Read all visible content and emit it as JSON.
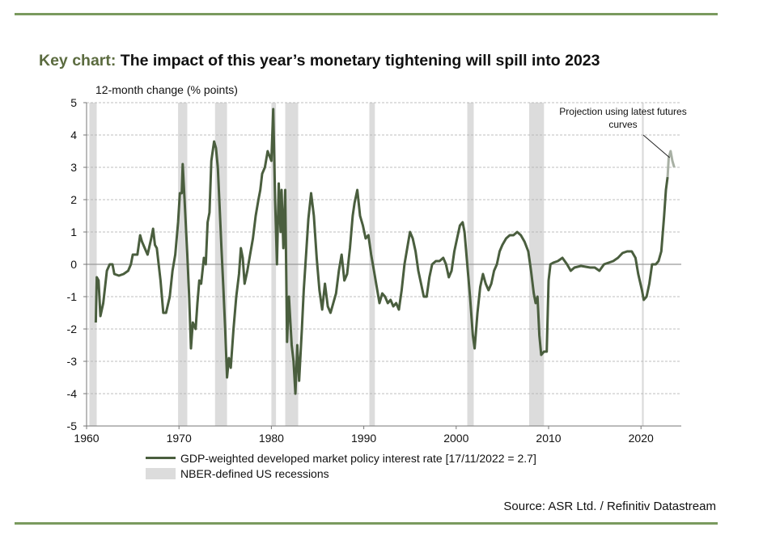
{
  "title": {
    "prefix": "Key chart:",
    "text": "The impact of this year’s monetary tightening will spill into 2023"
  },
  "source": "Source: ASR Ltd. / Refinitiv Datastream",
  "colors": {
    "series": "#4a5e3e",
    "projection": "#a8b0a4",
    "recession": "#dcdcdc",
    "title_prefix": "#5b6b3f",
    "rule": "#7a9a5e",
    "grid": "#aaaaaa"
  },
  "chart_data": {
    "type": "line",
    "title": "The impact of this year’s monetary tightening will spill into 2023",
    "ylabel": "12-month change (% points)",
    "xlabel": "",
    "xlim": [
      1960,
      2024.4
    ],
    "ylim": [
      -5,
      5
    ],
    "xticks": [
      1960,
      1970,
      1980,
      1990,
      2000,
      2010,
      2020
    ],
    "yticks": [
      5,
      4,
      3,
      2,
      1,
      0,
      -1,
      -2,
      -3,
      -4,
      -5
    ],
    "grid": "horizontal dashed",
    "legend_placement": "bottom",
    "annotation": "Projection using latest futures curves",
    "recessions": {
      "name": "NBER-defined US recessions",
      "periods": [
        [
          1960.3,
          1961.1
        ],
        [
          1969.9,
          1970.9
        ],
        [
          1973.9,
          1975.2
        ],
        [
          1980.0,
          1980.5
        ],
        [
          1981.5,
          1982.9
        ],
        [
          1990.6,
          1991.2
        ],
        [
          2001.2,
          2001.9
        ],
        [
          2007.9,
          2009.5
        ],
        [
          2020.1,
          2020.3
        ]
      ]
    },
    "series": [
      {
        "name": "GDP-weighted developed market policy interest rate [17/11/2022 = 2.7]",
        "x": [
          1961.0,
          1961.1,
          1961.3,
          1961.5,
          1961.8,
          1962.2,
          1962.5,
          1962.8,
          1963.0,
          1963.5,
          1964.0,
          1964.5,
          1964.8,
          1965.0,
          1965.5,
          1965.8,
          1966.0,
          1966.3,
          1966.6,
          1967.0,
          1967.2,
          1967.4,
          1967.6,
          1968.0,
          1968.3,
          1968.6,
          1969.0,
          1969.3,
          1969.6,
          1969.9,
          1970.1,
          1970.3,
          1970.4,
          1970.6,
          1970.9,
          1971.1,
          1971.3,
          1971.5,
          1971.8,
          1972.0,
          1972.2,
          1972.4,
          1972.7,
          1972.9,
          1973.1,
          1973.3,
          1973.5,
          1973.8,
          1974.0,
          1974.2,
          1974.4,
          1974.6,
          1974.8,
          1975.0,
          1975.2,
          1975.4,
          1975.6,
          1975.9,
          1976.2,
          1976.5,
          1976.7,
          1976.9,
          1977.1,
          1977.4,
          1977.7,
          1978.0,
          1978.3,
          1978.6,
          1978.8,
          1979.0,
          1979.3,
          1979.6,
          1980.0,
          1980.2,
          1980.4,
          1980.6,
          1980.8,
          1981.0,
          1981.1,
          1981.3,
          1981.5,
          1981.7,
          1981.9,
          1982.2,
          1982.4,
          1982.6,
          1982.8,
          1983.0,
          1983.3,
          1983.5,
          1983.8,
          1984.0,
          1984.3,
          1984.6,
          1984.9,
          1985.2,
          1985.5,
          1985.8,
          1986.1,
          1986.4,
          1986.7,
          1987.0,
          1987.3,
          1987.6,
          1987.9,
          1988.2,
          1988.5,
          1988.8,
          1989.0,
          1989.3,
          1989.6,
          1989.9,
          1990.2,
          1990.5,
          1990.8,
          1991.1,
          1991.4,
          1991.7,
          1992.0,
          1992.3,
          1992.6,
          1992.9,
          1993.2,
          1993.5,
          1993.8,
          1994.1,
          1994.4,
          1994.7,
          1995.0,
          1995.3,
          1995.6,
          1995.9,
          1996.2,
          1996.5,
          1996.8,
          1997.1,
          1997.4,
          1997.8,
          1998.2,
          1998.6,
          1998.9,
          1999.2,
          1999.5,
          1999.8,
          2000.1,
          2000.4,
          2000.7,
          2000.9,
          2001.2,
          2001.5,
          2001.8,
          2002.0,
          2002.3,
          2002.6,
          2002.9,
          2003.2,
          2003.5,
          2003.8,
          2004.1,
          2004.4,
          2004.7,
          2005.0,
          2005.4,
          2005.8,
          2006.2,
          2006.6,
          2007.0,
          2007.4,
          2007.8,
          2008.1,
          2008.4,
          2008.6,
          2008.8,
          2009.0,
          2009.2,
          2009.5,
          2009.8,
          2010.0,
          2010.2,
          2010.5,
          2011.0,
          2011.5,
          2012.0,
          2012.4,
          2012.8,
          2013.5,
          2014.5,
          2015.0,
          2015.5,
          2016.0,
          2016.5,
          2017.0,
          2017.5,
          2018.0,
          2018.5,
          2019.0,
          2019.4,
          2019.7,
          2020.1,
          2020.3,
          2020.6,
          2020.9,
          2021.2,
          2021.6,
          2021.9,
          2022.2,
          2022.5,
          2022.7,
          2022.88
        ],
        "y": [
          -1.8,
          -0.4,
          -0.5,
          -1.6,
          -1.2,
          -0.2,
          0.0,
          0.0,
          -0.3,
          -0.35,
          -0.3,
          -0.2,
          0.0,
          0.3,
          0.3,
          0.9,
          0.7,
          0.5,
          0.3,
          0.8,
          1.1,
          0.6,
          0.5,
          -0.5,
          -1.5,
          -1.5,
          -1.0,
          -0.2,
          0.3,
          1.3,
          2.2,
          2.2,
          3.1,
          2.0,
          0.3,
          -1.0,
          -2.6,
          -1.8,
          -2.0,
          -1.2,
          -0.5,
          -0.6,
          0.2,
          0.0,
          1.3,
          1.6,
          3.2,
          3.8,
          3.6,
          3.0,
          1.8,
          0.5,
          -0.7,
          -2.0,
          -3.5,
          -2.9,
          -3.2,
          -2.0,
          -1.0,
          -0.3,
          0.5,
          0.2,
          -0.6,
          -0.2,
          0.3,
          0.8,
          1.5,
          2.0,
          2.3,
          2.8,
          3.0,
          3.5,
          3.2,
          4.8,
          2.0,
          0.0,
          2.5,
          1.0,
          2.3,
          0.5,
          2.3,
          -2.4,
          -1.0,
          -2.5,
          -3.0,
          -4.0,
          -2.5,
          -3.6,
          -2.0,
          -0.8,
          0.5,
          1.4,
          2.2,
          1.5,
          0.2,
          -0.8,
          -1.4,
          -0.6,
          -1.3,
          -1.5,
          -1.2,
          -0.9,
          -0.2,
          0.3,
          -0.5,
          -0.3,
          0.5,
          1.5,
          1.9,
          2.3,
          1.5,
          1.2,
          0.8,
          0.9,
          0.3,
          -0.2,
          -0.7,
          -1.2,
          -0.9,
          -1.0,
          -1.2,
          -1.1,
          -1.3,
          -1.2,
          -1.4,
          -0.8,
          0.0,
          0.5,
          1.0,
          0.8,
          0.4,
          -0.2,
          -0.6,
          -1.0,
          -1.0,
          -0.4,
          0.0,
          0.1,
          0.1,
          0.2,
          0.0,
          -0.4,
          -0.2,
          0.4,
          0.8,
          1.2,
          1.3,
          1.0,
          0.0,
          -1.0,
          -2.2,
          -2.6,
          -1.5,
          -0.7,
          -0.3,
          -0.6,
          -0.8,
          -0.6,
          -0.2,
          0.0,
          0.4,
          0.6,
          0.8,
          0.9,
          0.9,
          1.0,
          0.9,
          0.7,
          0.4,
          -0.2,
          -0.9,
          -1.2,
          -1.0,
          -2.2,
          -2.8,
          -2.7,
          -2.7,
          -0.5,
          0.0,
          0.05,
          0.1,
          0.2,
          0.0,
          -0.2,
          -0.1,
          -0.05,
          -0.1,
          -0.1,
          -0.2,
          0.0,
          0.05,
          0.1,
          0.2,
          0.35,
          0.4,
          0.4,
          0.2,
          -0.3,
          -0.8,
          -1.1,
          -1.0,
          -0.6,
          0.0,
          0.0,
          0.1,
          0.4,
          1.5,
          2.3,
          2.7
        ]
      },
      {
        "name": "Projection using latest futures curves",
        "x": [
          2022.88,
          2023.0,
          2023.2,
          2023.4,
          2023.6
        ],
        "y": [
          2.7,
          3.3,
          3.5,
          3.2,
          3.0
        ]
      }
    ]
  }
}
